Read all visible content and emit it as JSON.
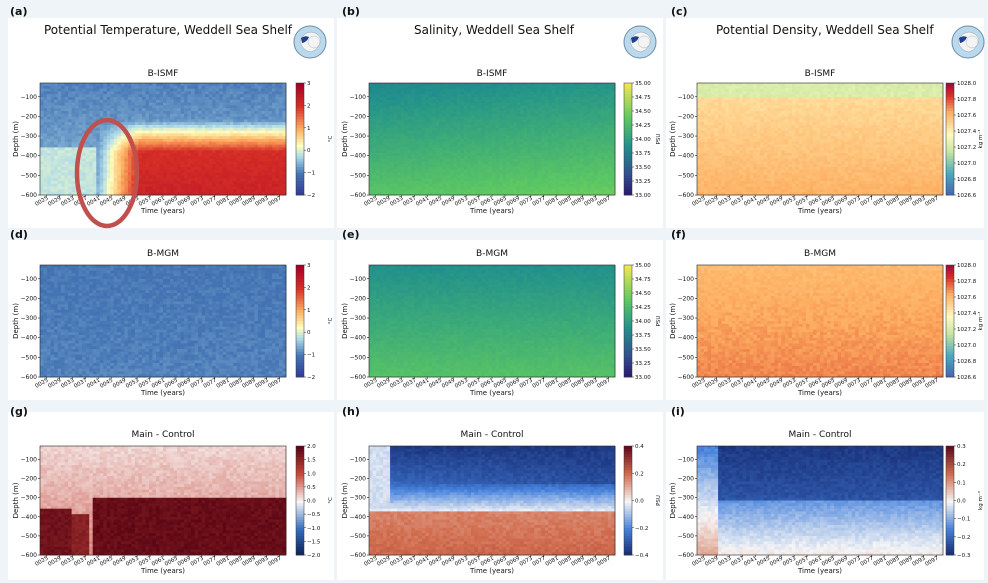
{
  "column_titles": [
    "Potential Temperature, Weddell Sea Shelf",
    "Salinity, Weddell Sea Shelf",
    "Potential Density, Weddell Sea Shelf"
  ],
  "colors": {
    "highlight_ellipse": "#c0504d",
    "background": "#eef4f7"
  },
  "chart_data": [
    {
      "id": "a",
      "panel_label": "(a)",
      "subtitle": "B-ISMF",
      "type": "heatmap",
      "xlabel": "Time (years)",
      "ylabel": "Depth (m)",
      "ylim": [
        -600,
        -30
      ],
      "yticks": [
        -100,
        -200,
        -300,
        -400,
        -500,
        -600
      ],
      "xticks": [
        "0025",
        "0029",
        "0033",
        "0037",
        "0041",
        "0045",
        "0049",
        "0053",
        "0057",
        "0061",
        "0065",
        "0069",
        "0073",
        "0077",
        "0081",
        "0085",
        "0089",
        "0093",
        "0097"
      ],
      "colorbar": {
        "label": "°C",
        "ticks": [
          "3",
          "2",
          "1",
          "0",
          "−1",
          "−2"
        ],
        "range": [
          -2,
          3
        ]
      },
      "cmap": "temp",
      "highlight": "ellipse around years 0037–0049, depth −250 to −600",
      "pattern": "warm water intrudes at depth after ~year 0041"
    },
    {
      "id": "b",
      "panel_label": "(b)",
      "subtitle": "B-ISMF",
      "type": "heatmap",
      "xlabel": "Time (years)",
      "ylabel": "Depth (m)",
      "ylim": [
        -600,
        -30
      ],
      "yticks": [
        -100,
        -200,
        -300,
        -400,
        -500,
        -600
      ],
      "xticks": [
        "0025",
        "0029",
        "0033",
        "0037",
        "0041",
        "0045",
        "0049",
        "0053",
        "0057",
        "0061",
        "0065",
        "0069",
        "0073",
        "0077",
        "0081",
        "0085",
        "0089",
        "0093",
        "0097"
      ],
      "colorbar": {
        "label": "PSU",
        "ticks": [
          "35.00",
          "34.75",
          "34.50",
          "34.25",
          "34.00",
          "33.75",
          "33.50",
          "33.25",
          "33.00"
        ],
        "range": [
          33.0,
          35.0
        ]
      },
      "cmap": "viridis"
    },
    {
      "id": "c",
      "panel_label": "(c)",
      "subtitle": "B-ISMF",
      "type": "heatmap",
      "xlabel": "Time (years)",
      "ylabel": "Depth (m)",
      "ylim": [
        -600,
        -30
      ],
      "yticks": [
        -100,
        -200,
        -300,
        -400,
        -500,
        -600
      ],
      "xticks": [
        "0025",
        "0029",
        "0033",
        "0037",
        "0041",
        "0045",
        "0049",
        "0053",
        "0057",
        "0061",
        "0065",
        "0069",
        "0073",
        "0077",
        "0081",
        "0085",
        "0089",
        "0093",
        "0097"
      ],
      "colorbar": {
        "label": "kg m⁻³",
        "ticks": [
          "1028.0",
          "1027.8",
          "1027.6",
          "1027.4",
          "1027.2",
          "1027.0",
          "1026.8",
          "1026.6"
        ],
        "range": [
          1026.5,
          1028.0
        ]
      },
      "cmap": "density"
    },
    {
      "id": "d",
      "panel_label": "(d)",
      "subtitle": "B-MGM",
      "type": "heatmap",
      "xlabel": "Time (years)",
      "ylabel": "Depth (m)",
      "ylim": [
        -600,
        -30
      ],
      "yticks": [
        -100,
        -200,
        -300,
        -400,
        -500,
        -600
      ],
      "xticks": [
        "0025",
        "0029",
        "0033",
        "0037",
        "0041",
        "0045",
        "0049",
        "0053",
        "0057",
        "0061",
        "0065",
        "0069",
        "0073",
        "0077",
        "0081",
        "0085",
        "0089",
        "0093",
        "0097"
      ],
      "colorbar": {
        "label": "°C",
        "ticks": [
          "3",
          "2",
          "1",
          "0",
          "−1",
          "−2"
        ],
        "range": [
          -2,
          3
        ]
      },
      "cmap": "temp"
    },
    {
      "id": "e",
      "panel_label": "(e)",
      "subtitle": "B-MGM",
      "type": "heatmap",
      "xlabel": "Time (years)",
      "ylabel": "Depth (m)",
      "ylim": [
        -600,
        -30
      ],
      "yticks": [
        -100,
        -200,
        -300,
        -400,
        -500,
        -600
      ],
      "xticks": [
        "0025",
        "0029",
        "0033",
        "0037",
        "0041",
        "0045",
        "0049",
        "0053",
        "0057",
        "0061",
        "0065",
        "0069",
        "0073",
        "0077",
        "0081",
        "0085",
        "0089",
        "0093",
        "0097"
      ],
      "colorbar": {
        "label": "PSU",
        "ticks": [
          "35.00",
          "34.75",
          "34.50",
          "34.25",
          "34.00",
          "33.75",
          "33.50",
          "33.25",
          "33.00"
        ],
        "range": [
          33.0,
          35.0
        ]
      },
      "cmap": "viridis"
    },
    {
      "id": "f",
      "panel_label": "(f)",
      "subtitle": "B-MGM",
      "type": "heatmap",
      "xlabel": "Time (years)",
      "ylabel": "Depth (m)",
      "ylim": [
        -600,
        -30
      ],
      "yticks": [
        -100,
        -200,
        -300,
        -400,
        -500,
        -600
      ],
      "xticks": [
        "0025",
        "0029",
        "0033",
        "0037",
        "0041",
        "0045",
        "0049",
        "0053",
        "0057",
        "0061",
        "0065",
        "0069",
        "0073",
        "0077",
        "0081",
        "0085",
        "0089",
        "0093",
        "0097"
      ],
      "colorbar": {
        "label": "kg m⁻³",
        "ticks": [
          "1028.0",
          "1027.8",
          "1027.6",
          "1027.4",
          "1027.2",
          "1027.0",
          "1026.8",
          "1026.6"
        ],
        "range": [
          1026.5,
          1028.0
        ]
      },
      "cmap": "density"
    },
    {
      "id": "g",
      "panel_label": "(g)",
      "subtitle": "Main - Control",
      "type": "heatmap",
      "xlabel": "Time (years)",
      "ylabel": "Depth (m)",
      "ylim": [
        -600,
        -30
      ],
      "yticks": [
        -100,
        -200,
        -300,
        -400,
        -500,
        -600
      ],
      "xticks": [
        "0025",
        "0029",
        "0033",
        "0037",
        "0041",
        "0045",
        "0049",
        "0053",
        "0057",
        "0061",
        "0065",
        "0069",
        "0073",
        "0077",
        "0081",
        "0085",
        "0089",
        "0093",
        "0097"
      ],
      "colorbar": {
        "label": "°C",
        "ticks": [
          "2.0",
          "1.5",
          "1.0",
          "0.5",
          "0.0",
          "−0.5",
          "−1.0",
          "−1.5",
          "−2.0"
        ],
        "range": [
          -2,
          2
        ]
      },
      "cmap": "diverging_warm"
    },
    {
      "id": "h",
      "panel_label": "(h)",
      "subtitle": "Main - Control",
      "type": "heatmap",
      "xlabel": "Time (years)",
      "ylabel": "Depth (m)",
      "ylim": [
        -600,
        -30
      ],
      "yticks": [
        -100,
        -200,
        -300,
        -400,
        -500,
        -600
      ],
      "xticks": [
        "0025",
        "0029",
        "0033",
        "0037",
        "0041",
        "0045",
        "0049",
        "0053",
        "0057",
        "0061",
        "0065",
        "0069",
        "0073",
        "0077",
        "0081",
        "0085",
        "0089",
        "0093",
        "0097"
      ],
      "colorbar": {
        "label": "PSU",
        "ticks": [
          "0.4",
          "0.2",
          "0.0",
          "−0.2",
          "−0.4"
        ],
        "range": [
          -0.5,
          0.5
        ]
      },
      "cmap": "diverging_cool"
    },
    {
      "id": "i",
      "panel_label": "(i)",
      "subtitle": "Main - Control",
      "type": "heatmap",
      "xlabel": "Time (years)",
      "ylabel": "Depth (m)",
      "ylim": [
        -600,
        -30
      ],
      "yticks": [
        -100,
        -200,
        -300,
        -400,
        -500,
        -600
      ],
      "xticks": [
        "0025",
        "0029",
        "0033",
        "0037",
        "0041",
        "0045",
        "0049",
        "0053",
        "0057",
        "0061",
        "0065",
        "0069",
        "0073",
        "0077",
        "0081",
        "0085",
        "0089",
        "0093",
        "0097"
      ],
      "colorbar": {
        "label": "kg m⁻³",
        "ticks": [
          "0.3",
          "0.2",
          "0.1",
          "0.0",
          "−0.1",
          "−0.2",
          "−0.3"
        ],
        "range": [
          -0.3,
          0.3
        ]
      },
      "cmap": "diverging_cool"
    }
  ]
}
